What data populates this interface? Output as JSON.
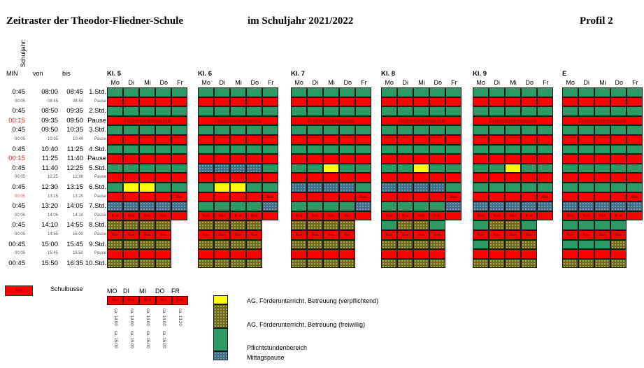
{
  "header": {
    "title": "Zeitraster der Theodor-Fliedner-Schule",
    "year": "im Schuljahr 2021/2022",
    "profile": "Profil 2",
    "vertical_label": "Schuljahr:"
  },
  "columns": {
    "min": "MIN",
    "von": "von",
    "bis": "bis"
  },
  "days": [
    "Mo",
    "Di",
    "Mi",
    "Do",
    "Fr"
  ],
  "rows": [
    {
      "min": "0:45",
      "von": "08:00",
      "bis": "08:45",
      "label": "1.Std.",
      "small": false,
      "red": false
    },
    {
      "min": "00:05",
      "von": "08:45",
      "bis": "08:50",
      "label": "Pause",
      "small": true,
      "red": false
    },
    {
      "min": "0:45",
      "von": "08:50",
      "bis": "09:35",
      "label": "2.Std.",
      "small": false,
      "red": false
    },
    {
      "min": "00:15",
      "von": "09:35",
      "bis": "09:50",
      "label": "Pause",
      "small": false,
      "red": true
    },
    {
      "min": "0:45",
      "von": "09:50",
      "bis": "10:35",
      "label": "3.Std.",
      "small": false,
      "red": false
    },
    {
      "min": "00:05",
      "von": "10:35",
      "bis": "10:40",
      "label": "Pause",
      "small": true,
      "red": false
    },
    {
      "min": "0:45",
      "von": "10:40",
      "bis": "11:25",
      "label": "4.Std.",
      "small": false,
      "red": false
    },
    {
      "min": "00:15",
      "von": "11:25",
      "bis": "11:40",
      "label": "Pause",
      "small": false,
      "red": true
    },
    {
      "min": "0:45",
      "von": "11:40",
      "bis": "12:25",
      "label": "5.Std.",
      "small": false,
      "red": false
    },
    {
      "min": "00:05",
      "von": "12:25",
      "bis": "12:30",
      "label": "Pause",
      "small": true,
      "red": false
    },
    {
      "min": "0:45",
      "von": "12:30",
      "bis": "13:15",
      "label": "6.Std.",
      "small": false,
      "red": false
    },
    {
      "min": "00:05",
      "von": "13:15",
      "bis": "13:20",
      "label": "Pause",
      "small": true,
      "red": true
    },
    {
      "min": "0:45",
      "von": "13:20",
      "bis": "14:05",
      "label": "7.Std.",
      "small": false,
      "red": false
    },
    {
      "min": "00:05",
      "von": "14:05",
      "bis": "14:10",
      "label": "Pause",
      "small": true,
      "red": false
    },
    {
      "min": "0:45",
      "von": "14:10",
      "bis": "14:55",
      "label": "8.Std.",
      "small": false,
      "red": false
    },
    {
      "min": "00:05",
      "von": "14:55",
      "bis": "15:00",
      "label": "Pause",
      "small": true,
      "red": false
    },
    {
      "min": "00:45",
      "von": "15:00",
      "bis": "15:45",
      "label": "9.Std.",
      "small": false,
      "red": false
    },
    {
      "min": "00:05",
      "von": "15:45",
      "bis": "15:50",
      "label": "Pause",
      "small": true,
      "red": false
    },
    {
      "min": "00:45",
      "von": "15:50",
      "bis": "16:35",
      "label": "10.Std.",
      "small": false,
      "red": false
    }
  ],
  "breakfast_label": "Frühstückspause",
  "bus_label": "Bus",
  "classes": [
    {
      "name": "Kl. 5",
      "grid": [
        "GGGGG",
        "RRRRR",
        "GGGGG",
        "F",
        "GGGGG",
        "RRRRR",
        "GGGGG",
        "RRRRR",
        "GGGGG",
        "RRRRR",
        "GYYGG",
        "RRRRB",
        "MMMMM",
        "BBBBR",
        "OOOO-",
        "BBBB-",
        "OOOO-",
        "RRRR-",
        "OOOO-"
      ]
    },
    {
      "name": "Kl. 6",
      "grid": [
        "GGGGG",
        "RRRRR",
        "GGGGG",
        "F",
        "GGGGG",
        "RRRRR",
        "GGGGG",
        "RRRRR",
        "MMMMG",
        "RRRRR",
        "GYYGG",
        "RRRRB",
        "GGGGM",
        "BBBBR",
        "OOOO-",
        "BBBB-",
        "OOOO-",
        "RRRR-",
        "OOOO-"
      ]
    },
    {
      "name": "Kl. 7",
      "grid": [
        "GGGGG",
        "RRRRR",
        "GGGGG",
        "F",
        "GGGGG",
        "RRRRR",
        "GGGGG",
        "RRRRR",
        "GGYGG",
        "RRRRR",
        "MMMMG",
        "RRRRB",
        "GGGGM",
        "BBBBR",
        "OOOO-",
        "BBBB-",
        "OOOO-",
        "RRRR-",
        "OOOO-"
      ]
    },
    {
      "name": "Kl. 8",
      "grid": [
        "GGGGG",
        "RRRRR",
        "GGGGG",
        "F",
        "GGGGG",
        "RRRRR",
        "GGGGG",
        "RRRRR",
        "GGYGG",
        "RRRRR",
        "MMMMG",
        "RRRRB",
        "GGGGM",
        "BBBBR",
        "GOOG-",
        "BBBB-",
        "OOOO-",
        "RRRR-",
        "OOOO-"
      ]
    },
    {
      "name": "Kl. 9",
      "grid": [
        "GGGGG",
        "RRRRR",
        "GGGGG",
        "F",
        "GGGGG",
        "RRRRR",
        "GGGGG",
        "RRRRR",
        "GGYGG",
        "RRRRR",
        "GGGGG",
        "RRRRB",
        "MMMMM",
        "BBBBR",
        "GOOG-",
        "BBBB-",
        "GOOO-",
        "RRRR-",
        "OOOO-"
      ]
    },
    {
      "name": "E",
      "grid": [
        "GGGGG",
        "RRRRR",
        "GGGGG",
        "F",
        "GGGGG",
        "RRRRR",
        "GGGGG",
        "RRRRR",
        "GGGGG",
        "RRRRR",
        "GGGGG",
        "RRRRB",
        "MMMMM",
        "BBBBR",
        "GGGG-",
        "BBBB-",
        "GGGO-",
        "RRRR-",
        "OOOO-"
      ]
    }
  ],
  "legend": {
    "bus_title": "Schulbusse",
    "bus_days": [
      "MO",
      "DI",
      "MI",
      "DO",
      "FR"
    ],
    "bus_times": [
      [
        "ca. 14.00",
        "ca. 15.00"
      ],
      [
        "ca. 14.00",
        "ca. 15.00"
      ],
      [
        "ca. 14.00",
        "ca. 15.00"
      ],
      [
        "ca. 14.00",
        "ca. 15.00"
      ],
      [
        "ca. 13.20"
      ]
    ],
    "items": [
      {
        "key": "Y",
        "label": "AG, Förderunterricht, Betreuung (verpflichtend)"
      },
      {
        "key": "O",
        "label": "AG, Förderunterricht, Betreuung (freiwillig)"
      },
      {
        "key": "G",
        "label": "Pflichtstundenbereich"
      },
      {
        "key": "M",
        "label": "Mittagspause"
      }
    ]
  },
  "colors": {
    "green": "#2e9a63",
    "red": "#ff0000",
    "yellow": "#ffff00",
    "olive": "#6e6a22",
    "teal": "#3c6f86"
  }
}
